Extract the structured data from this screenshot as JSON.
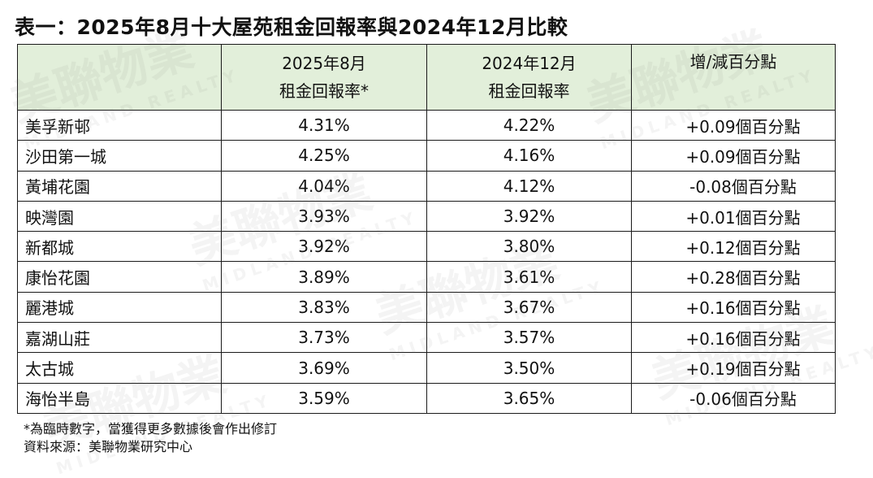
{
  "title": "表一：2025年8月十大屋苑租金回報率與2024年12月比較",
  "table": {
    "headers": [
      {
        "line1": "",
        "line2": ""
      },
      {
        "line1": "2025年8月",
        "line2": "租金回報率*"
      },
      {
        "line1": "2024年12月",
        "line2": "租金回報率"
      },
      {
        "line1": "增/減百分點",
        "line2": ""
      }
    ],
    "rows": [
      {
        "estate": "美孚新邨",
        "aug2025": "4.31%",
        "dec2024": "4.22%",
        "change": "+0.09個百分點"
      },
      {
        "estate": "沙田第一城",
        "aug2025": "4.25%",
        "dec2024": "4.16%",
        "change": "+0.09個百分點"
      },
      {
        "estate": "黃埔花園",
        "aug2025": "4.04%",
        "dec2024": "4.12%",
        "change": "-0.08個百分點"
      },
      {
        "estate": "映灣園",
        "aug2025": "3.93%",
        "dec2024": "3.92%",
        "change": "+0.01個百分點"
      },
      {
        "estate": "新都城",
        "aug2025": "3.92%",
        "dec2024": "3.80%",
        "change": "+0.12個百分點"
      },
      {
        "estate": "康怡花園",
        "aug2025": "3.89%",
        "dec2024": "3.61%",
        "change": "+0.28個百分點"
      },
      {
        "estate": "麗港城",
        "aug2025": "3.83%",
        "dec2024": "3.67%",
        "change": "+0.16個百分點"
      },
      {
        "estate": "嘉湖山莊",
        "aug2025": "3.73%",
        "dec2024": "3.57%",
        "change": "+0.16個百分點"
      },
      {
        "estate": "太古城",
        "aug2025": "3.69%",
        "dec2024": "3.50%",
        "change": "+0.19個百分點"
      },
      {
        "estate": "海怡半島",
        "aug2025": "3.59%",
        "dec2024": "3.65%",
        "change": "-0.06個百分點"
      }
    ]
  },
  "notes": {
    "footnote": "*為臨時數字，當獲得更多數據後會作出修訂",
    "source": "資料來源：美聯物業研究中心"
  },
  "watermark": {
    "brand_cn": "美聯物業",
    "brand_en": "MIDLAND REALTY"
  },
  "colors": {
    "header_background": "#e2efda",
    "border": "#1a1a1a",
    "text": "#111111"
  }
}
